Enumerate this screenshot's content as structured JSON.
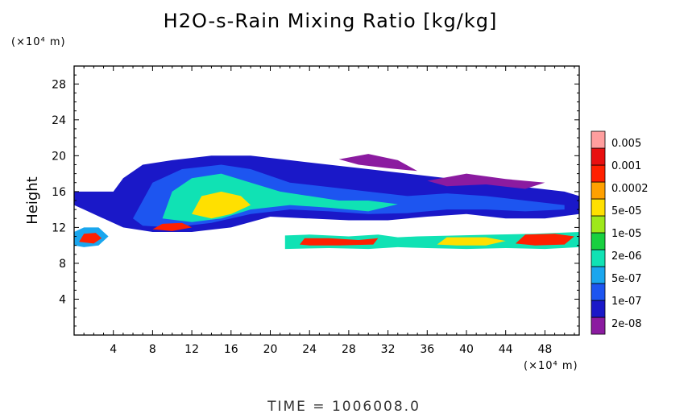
{
  "chart_data": {
    "type": "heatmap",
    "title": "H2O-s-Rain Mixing Ratio [kg/kg]",
    "ylabel": "Height",
    "xlabel": "",
    "x_unit_label": "(×10⁴ m)",
    "y_unit_label": "(×10⁴ m)",
    "x_ticks": [
      4,
      8,
      12,
      16,
      20,
      24,
      28,
      32,
      36,
      40,
      44,
      48
    ],
    "y_ticks": [
      4,
      8,
      12,
      16,
      20,
      24,
      28
    ],
    "xlim": [
      0,
      51.5
    ],
    "ylim": [
      0,
      30
    ],
    "colorbar": {
      "labels": [
        "0.005",
        "0.001",
        "0.0002",
        "5e-05",
        "1e-05",
        "2e-06",
        "5e-07",
        "1e-07",
        "2e-08"
      ],
      "colors": [
        "#8b1ba0",
        "#1a18c8",
        "#1d55f0",
        "#1aa6ee",
        "#10e2b4",
        "#18d040",
        "#9ee81a",
        "#ffe000",
        "#ffa000",
        "#ff2000",
        "#e81010",
        "#ff9e9e"
      ]
    },
    "regions": [
      {
        "name": "upper-cloud-deck",
        "level": 1,
        "points": [
          [
            0,
            14.5
          ],
          [
            0,
            16
          ],
          [
            4,
            16
          ],
          [
            5,
            17.5
          ],
          [
            7,
            19
          ],
          [
            10,
            19.5
          ],
          [
            14,
            20
          ],
          [
            18,
            20
          ],
          [
            22,
            19.5
          ],
          [
            26,
            19
          ],
          [
            30,
            18.5
          ],
          [
            34,
            18
          ],
          [
            38,
            17.5
          ],
          [
            42,
            17
          ],
          [
            46,
            16.5
          ],
          [
            50,
            16
          ],
          [
            51.5,
            15.5
          ],
          [
            51.5,
            13.5
          ],
          [
            48,
            13
          ],
          [
            44,
            13
          ],
          [
            40,
            13.5
          ],
          [
            36,
            13.2
          ],
          [
            32,
            12.8
          ],
          [
            28,
            12.8
          ],
          [
            24,
            13
          ],
          [
            20,
            13.2
          ],
          [
            16,
            12
          ],
          [
            12,
            11.5
          ],
          [
            8,
            11.5
          ],
          [
            5,
            12
          ],
          [
            3,
            13
          ],
          [
            1,
            14
          ]
        ]
      },
      {
        "name": "upper-cloud-inner",
        "level": 2,
        "points": [
          [
            6,
            13
          ],
          [
            8,
            17
          ],
          [
            11,
            18.5
          ],
          [
            15,
            19
          ],
          [
            18,
            18.5
          ],
          [
            22,
            17
          ],
          [
            26,
            16.5
          ],
          [
            30,
            16
          ],
          [
            34,
            15.5
          ],
          [
            38,
            15.8
          ],
          [
            42,
            15.5
          ],
          [
            46,
            15
          ],
          [
            50,
            14.5
          ],
          [
            50,
            14
          ],
          [
            46,
            13.8
          ],
          [
            42,
            14
          ],
          [
            38,
            14
          ],
          [
            34,
            13.6
          ],
          [
            30,
            13.5
          ],
          [
            26,
            13.8
          ],
          [
            22,
            14
          ],
          [
            18,
            13.5
          ],
          [
            14,
            12.5
          ],
          [
            10,
            12
          ],
          [
            7,
            12.2
          ]
        ]
      },
      {
        "name": "upper-cloud-core",
        "level": 4,
        "points": [
          [
            9,
            13
          ],
          [
            10,
            16
          ],
          [
            12,
            17.5
          ],
          [
            15,
            18
          ],
          [
            18,
            17
          ],
          [
            21,
            16
          ],
          [
            24,
            15.5
          ],
          [
            27,
            15
          ],
          [
            30,
            15
          ],
          [
            33,
            14.6
          ],
          [
            30,
            13.8
          ],
          [
            26,
            14.2
          ],
          [
            22,
            14.5
          ],
          [
            18,
            14
          ],
          [
            15,
            13
          ],
          [
            12,
            12.6
          ]
        ]
      },
      {
        "name": "upper-cloud-peak",
        "level": 7,
        "points": [
          [
            12,
            13.5
          ],
          [
            13,
            15.5
          ],
          [
            15,
            16
          ],
          [
            17,
            15.5
          ],
          [
            18,
            14.5
          ],
          [
            16,
            13.5
          ],
          [
            14,
            13
          ]
        ]
      },
      {
        "name": "upper-cloud-hot",
        "level": 9,
        "points": [
          [
            8,
            11.8
          ],
          [
            9,
            12.4
          ],
          [
            11,
            12.5
          ],
          [
            12,
            12
          ],
          [
            10,
            11.6
          ]
        ]
      },
      {
        "name": "left-edge-lump",
        "level": 3,
        "points": [
          [
            0,
            10
          ],
          [
            0,
            11.5
          ],
          [
            1,
            12
          ],
          [
            2.5,
            12
          ],
          [
            3.5,
            11
          ],
          [
            2.5,
            10
          ],
          [
            1,
            9.8
          ]
        ]
      },
      {
        "name": "left-edge-core",
        "level": 9,
        "points": [
          [
            0.5,
            10.4
          ],
          [
            1,
            11.3
          ],
          [
            2.2,
            11.4
          ],
          [
            2.8,
            10.8
          ],
          [
            2,
            10.2
          ]
        ]
      },
      {
        "name": "lower-band",
        "level": 4,
        "points": [
          [
            21.5,
            9.6
          ],
          [
            21.5,
            11.1
          ],
          [
            24,
            11.2
          ],
          [
            28,
            11
          ],
          [
            31,
            11.2
          ],
          [
            33,
            10.9
          ],
          [
            35,
            11
          ],
          [
            39,
            11.1
          ],
          [
            43,
            11.2
          ],
          [
            47,
            11.3
          ],
          [
            51.5,
            11.5
          ],
          [
            51.5,
            9.8
          ],
          [
            48,
            9.6
          ],
          [
            44,
            9.7
          ],
          [
            40,
            9.6
          ],
          [
            36,
            9.7
          ],
          [
            33,
            9.8
          ],
          [
            30,
            9.6
          ],
          [
            26,
            9.7
          ]
        ]
      },
      {
        "name": "lower-band-core-a",
        "level": 9,
        "points": [
          [
            23,
            10.1
          ],
          [
            23.5,
            10.8
          ],
          [
            26,
            10.8
          ],
          [
            29,
            10.6
          ],
          [
            31,
            10.8
          ],
          [
            30.5,
            10.1
          ],
          [
            27,
            10
          ],
          [
            24,
            10
          ]
        ]
      },
      {
        "name": "lower-band-core-b",
        "level": 9,
        "points": [
          [
            45,
            10.2
          ],
          [
            46,
            11.2
          ],
          [
            49,
            11.3
          ],
          [
            51,
            11
          ],
          [
            50,
            10.1
          ],
          [
            47,
            10
          ]
        ]
      },
      {
        "name": "lower-band-core-c",
        "level": 7,
        "points": [
          [
            37,
            10.1
          ],
          [
            38,
            10.9
          ],
          [
            42,
            10.9
          ],
          [
            44,
            10.5
          ],
          [
            42,
            10
          ],
          [
            39,
            10
          ]
        ]
      },
      {
        "name": "top-wisps",
        "level": 0,
        "points": [
          [
            27,
            19.6
          ],
          [
            30,
            20.2
          ],
          [
            33,
            19.5
          ],
          [
            35,
            18.3
          ],
          [
            32,
            18.6
          ],
          [
            29,
            19
          ]
        ]
      },
      {
        "name": "right-wisps",
        "level": 0,
        "points": [
          [
            36,
            17.2
          ],
          [
            40,
            18
          ],
          [
            44,
            17.4
          ],
          [
            48,
            17
          ],
          [
            46,
            16.3
          ],
          [
            42,
            16.8
          ],
          [
            38,
            16.6
          ]
        ]
      }
    ]
  },
  "time_label": "TIME = 1006008.0"
}
